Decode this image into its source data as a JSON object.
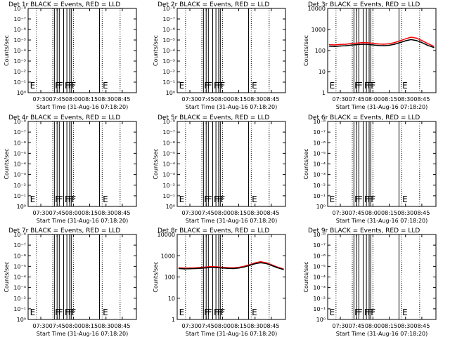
{
  "page": {
    "background": "#ffffff",
    "series_colors": {
      "events": "#000000",
      "lld": "#ff0000"
    }
  },
  "axes_common": {
    "xlabel": "Start Time (31-Aug-16 07:18:20)",
    "ylabel": "Counts/sec",
    "x_ticks": [
      "07:30",
      "07:45",
      "08:00",
      "08:15",
      "08:30",
      "08:45"
    ],
    "x_tick_minutes": [
      30,
      45,
      60,
      75,
      90,
      105
    ],
    "x_range_minutes": [
      18.33,
      118
    ],
    "y_scale": "log"
  },
  "markers": {
    "dotted_minutes": [
      26,
      41,
      60,
      86.5,
      103
    ],
    "solid_minutes": [
      42.5,
      45,
      47,
      51,
      54,
      56.5,
      58,
      84
    ],
    "letters": [
      {
        "text": "E",
        "minute": 20
      },
      {
        "text": "F",
        "minute": 43
      },
      {
        "text": "F",
        "minute": 46
      },
      {
        "text": "F",
        "minute": 52
      },
      {
        "text": "F",
        "minute": 55
      },
      {
        "text": "F",
        "minute": 58
      },
      {
        "text": "E",
        "minute": 87
      }
    ]
  },
  "chart_data": [
    {
      "type": "line",
      "title": "Det 1r BLACK = Events, RED = LLD",
      "y_range": [
        1,
        1e-08
      ],
      "y_ticks": [
        "10⁰",
        "10⁻¹",
        "10⁻²",
        "10⁻³",
        "10⁻⁴",
        "10⁻⁵",
        "10⁻⁶",
        "10⁻⁷",
        "10⁻⁸"
      ],
      "y_tick_values": [
        1,
        0.1,
        0.01,
        0.001,
        0.0001,
        1e-05,
        1e-06,
        1e-07,
        1e-08
      ],
      "series": []
    },
    {
      "type": "line",
      "title": "Det 2r BLACK = Events, RED = LLD",
      "y_range": [
        1,
        1e-08
      ],
      "y_ticks": [
        "10⁰",
        "10⁻¹",
        "10⁻²",
        "10⁻³",
        "10⁻⁴",
        "10⁻⁵",
        "10⁻⁶",
        "10⁻⁷",
        "10⁻⁸"
      ],
      "y_tick_values": [
        1,
        0.1,
        0.01,
        0.001,
        0.0001,
        1e-05,
        1e-06,
        1e-07,
        1e-08
      ],
      "series": []
    },
    {
      "type": "line",
      "title": "Det 3r BLACK = Events, RED = LLD",
      "y_range": [
        1,
        10000
      ],
      "y_ticks": [
        "1",
        "10",
        "100",
        "1000",
        "10000"
      ],
      "y_tick_values": [
        1,
        10,
        100,
        1000,
        10000
      ],
      "series": [
        {
          "color": "#ff0000",
          "x": [
            20,
            25,
            30,
            35,
            40,
            45,
            50,
            55,
            60,
            65,
            70,
            75,
            80,
            85,
            90,
            95,
            100,
            105,
            110,
            116
          ],
          "y": [
            190,
            185,
            195,
            200,
            215,
            225,
            240,
            235,
            220,
            205,
            200,
            210,
            240,
            290,
            360,
            430,
            390,
            300,
            220,
            160
          ]
        },
        {
          "color": "#000000",
          "x": [
            20,
            25,
            30,
            35,
            40,
            45,
            50,
            55,
            60,
            65,
            70,
            75,
            80,
            85,
            90,
            95,
            100,
            105,
            110,
            116
          ],
          "y": [
            160,
            155,
            165,
            170,
            180,
            190,
            200,
            195,
            185,
            175,
            170,
            178,
            200,
            240,
            290,
            330,
            300,
            240,
            180,
            140
          ]
        }
      ]
    },
    {
      "type": "line",
      "title": "Det 4r BLACK = Events, RED = LLD",
      "y_range": [
        1,
        1e-08
      ],
      "y_ticks": [
        "10⁰",
        "10⁻¹",
        "10⁻²",
        "10⁻³",
        "10⁻⁴",
        "10⁻⁵",
        "10⁻⁶",
        "10⁻⁷",
        "10⁻⁸"
      ],
      "y_tick_values": [
        1,
        0.1,
        0.01,
        0.001,
        0.0001,
        1e-05,
        1e-06,
        1e-07,
        1e-08
      ],
      "series": []
    },
    {
      "type": "line",
      "title": "Det 5r BLACK = Events, RED = LLD",
      "y_range": [
        1,
        1e-08
      ],
      "y_ticks": [
        "10⁰",
        "10⁻¹",
        "10⁻²",
        "10⁻³",
        "10⁻⁴",
        "10⁻⁵",
        "10⁻⁶",
        "10⁻⁷",
        "10⁻⁸"
      ],
      "y_tick_values": [
        1,
        0.1,
        0.01,
        0.001,
        0.0001,
        1e-05,
        1e-06,
        1e-07,
        1e-08
      ],
      "series": []
    },
    {
      "type": "line",
      "title": "Det 6r BLACK = Events, RED = LLD",
      "y_range": [
        1,
        1e-08
      ],
      "y_ticks": [
        "10⁰",
        "10⁻¹",
        "10⁻²",
        "10⁻³",
        "10⁻⁴",
        "10⁻⁵",
        "10⁻⁶",
        "10⁻⁷",
        "10⁻⁸"
      ],
      "y_tick_values": [
        1,
        0.1,
        0.01,
        0.001,
        0.0001,
        1e-05,
        1e-06,
        1e-07,
        1e-08
      ],
      "series": []
    },
    {
      "type": "line",
      "title": "Det 7r BLACK = Events, RED = LLD",
      "y_range": [
        1,
        1e-08
      ],
      "y_ticks": [
        "10⁰",
        "10⁻¹",
        "10⁻²",
        "10⁻³",
        "10⁻⁴",
        "10⁻⁵",
        "10⁻⁶",
        "10⁻⁷",
        "10⁻⁸"
      ],
      "y_tick_values": [
        1,
        0.1,
        0.01,
        0.001,
        0.0001,
        1e-05,
        1e-06,
        1e-07,
        1e-08
      ],
      "series": []
    },
    {
      "type": "line",
      "title": "Det 8r BLACK = Events, RED = LLD",
      "y_range": [
        1,
        10000
      ],
      "y_ticks": [
        "1",
        "10",
        "100",
        "1000",
        "10000"
      ],
      "y_tick_values": [
        1,
        10,
        100,
        1000,
        10000
      ],
      "series": [
        {
          "color": "#ff0000",
          "x": [
            20,
            25,
            30,
            35,
            40,
            45,
            50,
            55,
            60,
            65,
            70,
            75,
            80,
            85,
            90,
            95,
            100,
            105,
            110,
            116
          ],
          "y": [
            270,
            260,
            265,
            270,
            280,
            295,
            310,
            300,
            285,
            275,
            270,
            285,
            320,
            380,
            460,
            520,
            470,
            380,
            300,
            240
          ]
        },
        {
          "color": "#000000",
          "x": [
            20,
            25,
            30,
            35,
            40,
            45,
            50,
            55,
            60,
            65,
            70,
            75,
            80,
            85,
            90,
            95,
            100,
            105,
            110,
            116
          ],
          "y": [
            250,
            240,
            245,
            250,
            258,
            270,
            285,
            278,
            265,
            255,
            250,
            262,
            295,
            350,
            420,
            470,
            430,
            350,
            280,
            225
          ]
        }
      ]
    },
    {
      "type": "line",
      "title": "Det 9r BLACK = Events, RED = LLD",
      "y_range": [
        1,
        1e-08
      ],
      "y_ticks": [
        "10⁰",
        "10⁻¹",
        "10⁻²",
        "10⁻³",
        "10⁻⁴",
        "10⁻⁵",
        "10⁻⁶",
        "10⁻⁷",
        "10⁻⁸"
      ],
      "y_tick_values": [
        1,
        0.1,
        0.01,
        0.001,
        0.0001,
        1e-05,
        1e-06,
        1e-07,
        1e-08
      ],
      "series": []
    }
  ]
}
